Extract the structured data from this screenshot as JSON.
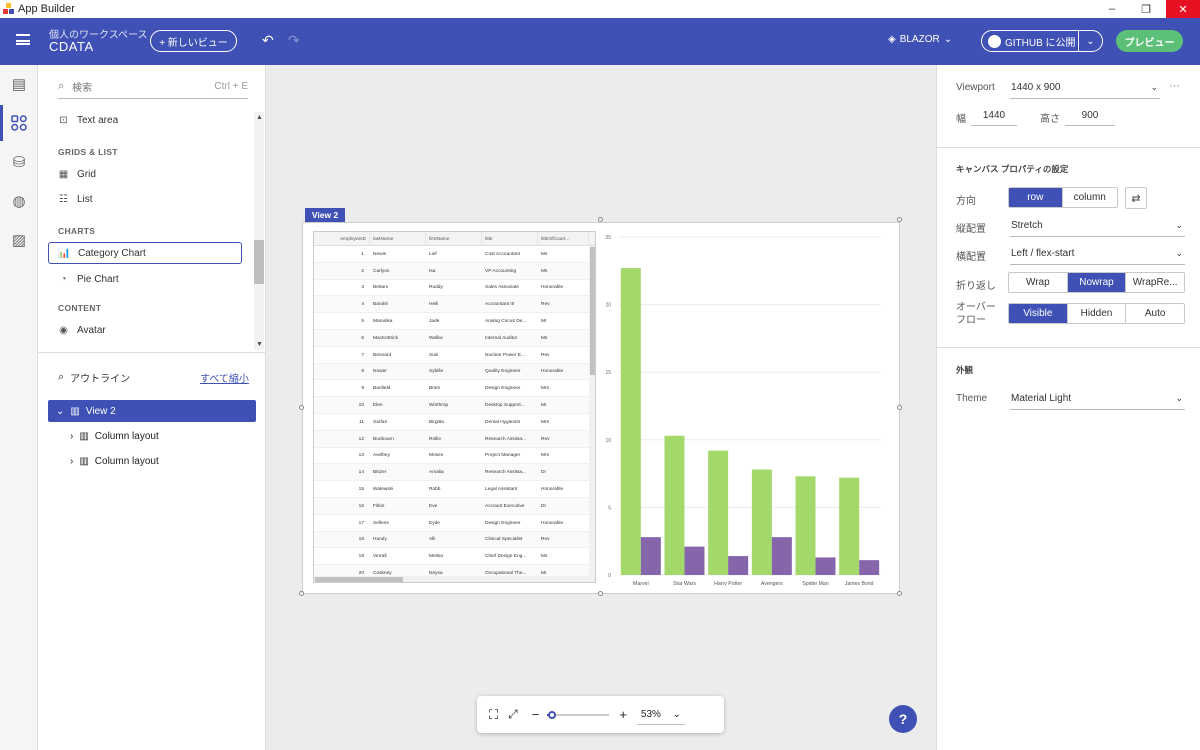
{
  "window": {
    "title": "App Builder",
    "minimize": "–",
    "maximize": "❐",
    "close": "✕"
  },
  "header": {
    "workspace_label": "個人のワークスペース",
    "project_name": "CDATA",
    "new_view_label": "+ 新しいビュー",
    "framework_label": "BLAZOR",
    "github_label": "GITHUB に公開",
    "preview_label": "プレビュー"
  },
  "toolbox": {
    "search_placeholder": "検索",
    "search_shortcut": "Ctrl + E",
    "items": [
      {
        "label": "Text area",
        "icon": "text-area-icon"
      },
      {
        "category": "GRIDS & LIST"
      },
      {
        "label": "Grid",
        "icon": "grid-icon"
      },
      {
        "label": "List",
        "icon": "list-icon"
      },
      {
        "category": "CHARTS"
      },
      {
        "label": "Category Chart",
        "icon": "category-chart-icon",
        "selected": true
      },
      {
        "label": "Pie Chart",
        "icon": "pie-chart-icon"
      },
      {
        "category": "CONTENT"
      },
      {
        "label": "Avatar",
        "icon": "avatar-icon"
      }
    ]
  },
  "outline": {
    "title": "アウトライン",
    "collapse_all": "すべて縮小",
    "items": [
      {
        "label": "View 2",
        "selected": true
      },
      {
        "label": "Column layout"
      },
      {
        "label": "Column layout"
      }
    ]
  },
  "canvas": {
    "view_tag": "View 2",
    "grid": {
      "columns": [
        "employeeID",
        "lastName",
        "firstName",
        "title",
        "titleOfCourt..."
      ],
      "rows": [
        [
          "1",
          "Newis",
          "Lief",
          "Cost Accountant",
          "Ms"
        ],
        [
          "2",
          "Carlyon",
          "Isa",
          "VP Accounting",
          "Ms"
        ],
        [
          "3",
          "Bettam",
          "Ruddy",
          "Sales Associate",
          "Honorable"
        ],
        [
          "4",
          "Barukh",
          "Heili",
          "Accountant III",
          "Rev"
        ],
        [
          "5",
          "Marusika",
          "Jade",
          "Analog Circuit De...",
          "Mr"
        ],
        [
          "6",
          "MacKettrick",
          "Walliw",
          "Internal Auditor",
          "Ms"
        ],
        [
          "7",
          "Bennard",
          "Susi",
          "Nuclear Power E...",
          "Rev"
        ],
        [
          "8",
          "Nower",
          "Sybille",
          "Quality Engineer",
          "Honorable"
        ],
        [
          "9",
          "Banfield",
          "Brien",
          "Design Engineer",
          "Mrs"
        ],
        [
          "10",
          "Elen",
          "Winthrop",
          "Desktop Support...",
          "Mr"
        ],
        [
          "11",
          "Sarfati",
          "Birgitta",
          "Dental Hygienist",
          "Mrs"
        ],
        [
          "12",
          "Bunbourn",
          "Rollie",
          "Research Assista...",
          "Rev"
        ],
        [
          "13",
          "Avelbey",
          "Moses",
          "Project Manager",
          "Mrs"
        ],
        [
          "14",
          "Bitizer",
          "Amalia",
          "Research Assista...",
          "Dr"
        ],
        [
          "15",
          "Walewski",
          "Robb",
          "Legal Assistant",
          "Honorable"
        ],
        [
          "16",
          "Fitkin",
          "Eve",
          "Account Executive",
          "Dr"
        ],
        [
          "17",
          "Sellens",
          "Eyde",
          "Design Engineer",
          "Honorable"
        ],
        [
          "18",
          "Hundy",
          "Alli",
          "Clinical Specialist",
          "Rev"
        ],
        [
          "19",
          "Verrall",
          "Melisa",
          "Chief Design Eng...",
          "Ms"
        ],
        [
          "20",
          "Coskney",
          "Neysa",
          "Occupational The...",
          "Mr"
        ]
      ]
    },
    "zoom_value": "53%"
  },
  "chart_data": {
    "type": "bar",
    "categories": [
      "Marvel",
      "Star Wars",
      "Harry Potter",
      "Avengers",
      "Spider Man",
      "James Bond"
    ],
    "series": [
      {
        "values": [
          22.7,
          10.3,
          9.2,
          7.8,
          7.3,
          7.2
        ],
        "color": "#a3d96b"
      },
      {
        "values": [
          2.8,
          2.1,
          1.4,
          2.8,
          1.3,
          1.1
        ],
        "color": "#8566ab"
      }
    ],
    "ylim": [
      0,
      25
    ],
    "yticks": [
      "0",
      "5",
      "10",
      "15",
      "20",
      "25"
    ],
    "grid": true
  },
  "properties": {
    "viewport_label": "Viewport",
    "viewport_value": "1440 x 900",
    "width_label": "幅",
    "width_value": "1440",
    "height_label": "高さ",
    "height_value": "900",
    "canvas_section": "キャンバス プロパティの設定",
    "direction_label": "方向",
    "direction_options": [
      "row",
      "column"
    ],
    "vertical_label": "縦配置",
    "vertical_value": "Stretch",
    "horizontal_label": "横配置",
    "horizontal_value": "Left / flex-start",
    "wrap_label": "折り返し",
    "wrap_options": [
      "Wrap",
      "Nowrap",
      "WrapRe..."
    ],
    "overflow_label": "オーバー\nフロー",
    "overflow_options": [
      "Visible",
      "Hidden",
      "Auto"
    ],
    "appearance_section": "外観",
    "theme_label": "Theme",
    "theme_value": "Material Light"
  },
  "colors": {
    "accent": "#3f51b5",
    "preview": "#5cc078"
  }
}
